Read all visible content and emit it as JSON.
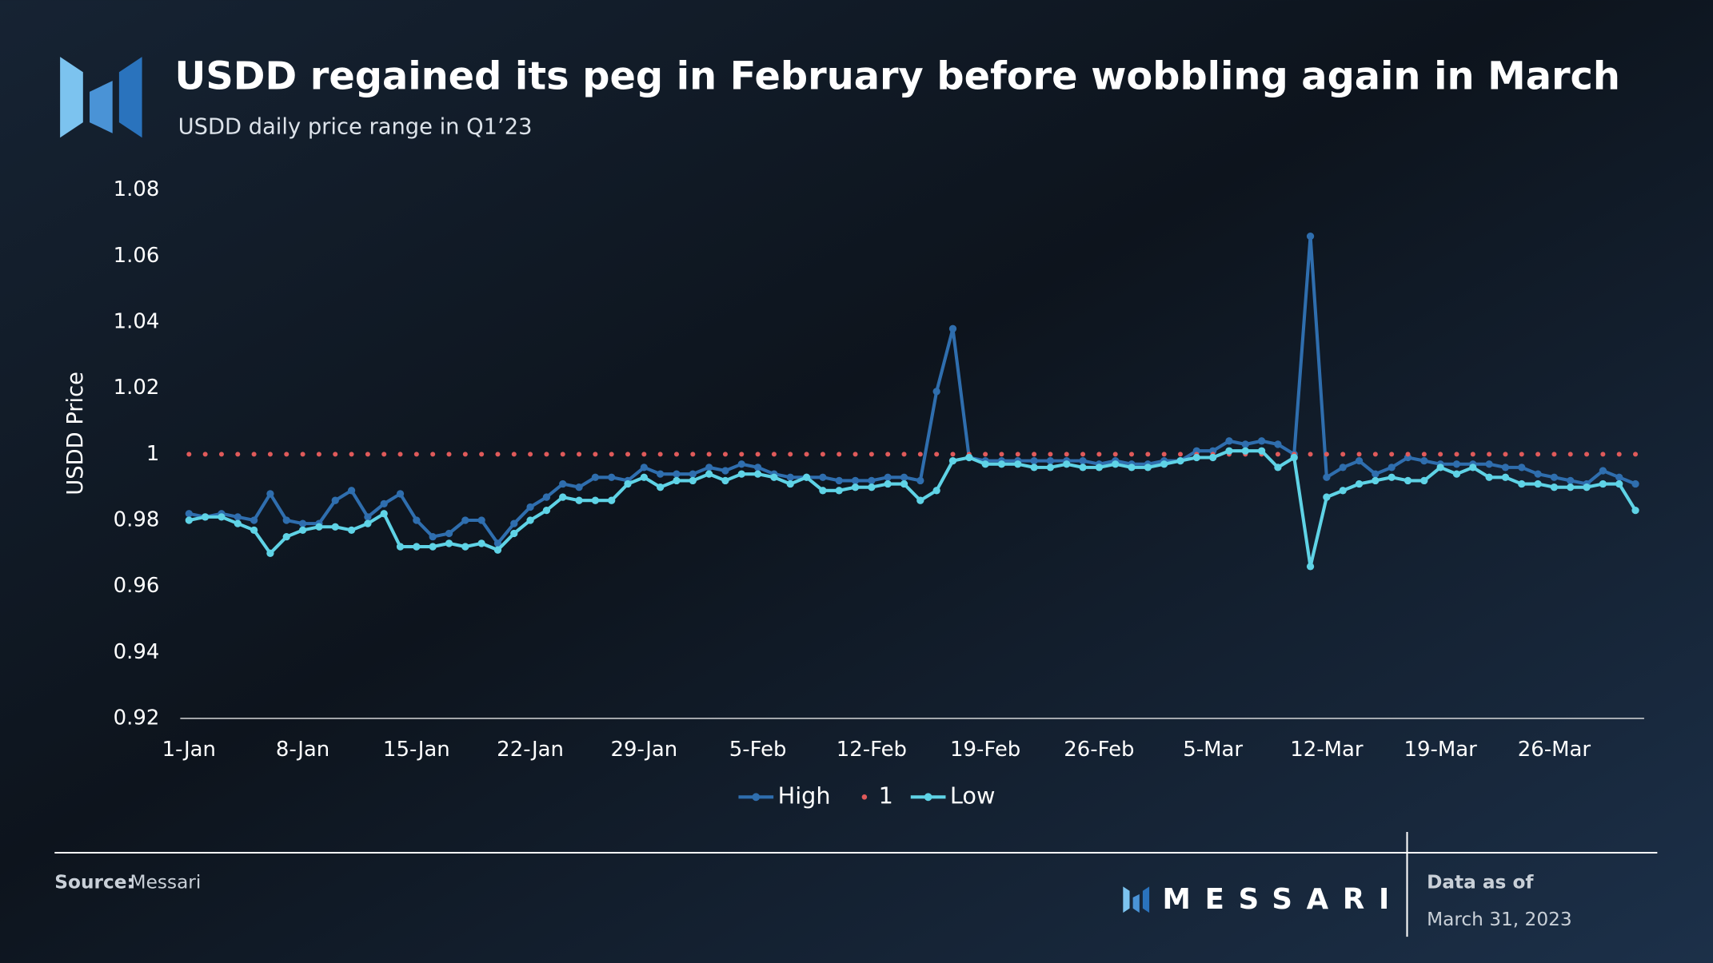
{
  "chart_data": {
    "type": "line",
    "title": "USDD regained its peg in February before wobbling again in March",
    "subtitle": "USDD daily price range in Q1’23",
    "y_label": "USDD Price",
    "categories": [
      "1-Jan",
      null,
      null,
      null,
      null,
      null,
      null,
      "8-Jan",
      null,
      null,
      null,
      null,
      null,
      null,
      "15-Jan",
      null,
      null,
      null,
      null,
      null,
      null,
      "22-Jan",
      null,
      null,
      null,
      null,
      null,
      null,
      "29-Jan",
      null,
      null,
      null,
      null,
      null,
      null,
      "5-Feb",
      null,
      null,
      null,
      null,
      null,
      null,
      "12-Feb",
      null,
      null,
      null,
      null,
      null,
      null,
      "19-Feb",
      null,
      null,
      null,
      null,
      null,
      null,
      "26-Feb",
      null,
      null,
      null,
      null,
      null,
      null,
      "5-Mar",
      null,
      null,
      null,
      null,
      null,
      null,
      "12-Mar",
      null,
      null,
      null,
      null,
      null,
      null,
      "19-Mar",
      null,
      null,
      null,
      null,
      null,
      null,
      "26-Mar",
      null,
      null,
      null,
      null,
      null
    ],
    "series": [
      {
        "name": "High",
        "color": "#2f6eae",
        "line_style": "solid",
        "values": [
          0.982,
          0.981,
          0.982,
          0.981,
          0.98,
          0.988,
          0.98,
          0.979,
          0.979,
          0.986,
          0.989,
          0.981,
          0.985,
          0.988,
          0.98,
          0.975,
          0.976,
          0.98,
          0.98,
          0.973,
          0.979,
          0.984,
          0.987,
          0.991,
          0.99,
          0.993,
          0.993,
          0.992,
          0.996,
          0.994,
          0.994,
          0.994,
          0.996,
          0.995,
          0.997,
          0.996,
          0.994,
          0.993,
          0.993,
          0.993,
          0.992,
          0.992,
          0.992,
          0.993,
          0.993,
          0.992,
          1.019,
          1.038,
          0.999,
          0.998,
          0.998,
          0.998,
          0.998,
          0.998,
          0.998,
          0.998,
          0.997,
          0.998,
          0.997,
          0.997,
          0.998,
          0.998,
          1.001,
          1.001,
          1.004,
          1.003,
          1.004,
          1.003,
          1.0,
          1.066,
          0.993,
          0.996,
          0.998,
          0.994,
          0.996,
          0.999,
          0.998,
          0.997,
          0.997,
          0.997,
          0.997,
          0.996,
          0.996,
          0.994,
          0.993,
          0.992,
          0.991,
          0.995,
          0.993,
          0.991
        ]
      },
      {
        "name": "1",
        "color": "#e05a5a",
        "line_style": "dotted",
        "values": [
          1,
          1,
          1,
          1,
          1,
          1,
          1,
          1,
          1,
          1,
          1,
          1,
          1,
          1,
          1,
          1,
          1,
          1,
          1,
          1,
          1,
          1,
          1,
          1,
          1,
          1,
          1,
          1,
          1,
          1,
          1,
          1,
          1,
          1,
          1,
          1,
          1,
          1,
          1,
          1,
          1,
          1,
          1,
          1,
          1,
          1,
          1,
          1,
          1,
          1,
          1,
          1,
          1,
          1,
          1,
          1,
          1,
          1,
          1,
          1,
          1,
          1,
          1,
          1,
          1,
          1,
          1,
          1,
          1,
          1,
          1,
          1,
          1,
          1,
          1,
          1,
          1,
          1,
          1,
          1,
          1,
          1,
          1,
          1,
          1,
          1,
          1,
          1,
          1,
          1
        ]
      },
      {
        "name": "Low",
        "color": "#5fd3e6",
        "line_style": "solid",
        "values": [
          0.98,
          0.981,
          0.981,
          0.979,
          0.977,
          0.97,
          0.975,
          0.977,
          0.978,
          0.978,
          0.977,
          0.979,
          0.982,
          0.972,
          0.972,
          0.972,
          0.973,
          0.972,
          0.973,
          0.971,
          0.976,
          0.98,
          0.983,
          0.987,
          0.986,
          0.986,
          0.986,
          0.991,
          0.993,
          0.99,
          0.992,
          0.992,
          0.994,
          0.992,
          0.994,
          0.994,
          0.993,
          0.991,
          0.993,
          0.989,
          0.989,
          0.99,
          0.99,
          0.991,
          0.991,
          0.986,
          0.989,
          0.998,
          0.999,
          0.997,
          0.997,
          0.997,
          0.996,
          0.996,
          0.997,
          0.996,
          0.996,
          0.997,
          0.996,
          0.996,
          0.997,
          0.998,
          0.999,
          0.999,
          1.001,
          1.001,
          1.001,
          0.996,
          0.999,
          0.966,
          0.987,
          0.989,
          0.991,
          0.992,
          0.993,
          0.992,
          0.992,
          0.996,
          0.994,
          0.996,
          0.993,
          0.993,
          0.991,
          0.991,
          0.99,
          0.99,
          0.99,
          0.991,
          0.991,
          0.983
        ]
      }
    ],
    "ylim": [
      0.92,
      1.08
    ],
    "yticks": [
      0.92,
      0.94,
      0.96,
      0.98,
      1,
      1.02,
      1.04,
      1.06,
      1.08
    ],
    "grid": false,
    "legend": "bottom"
  },
  "footer": {
    "source_label": "Source:",
    "source": "Messari",
    "brand": "MESSARI",
    "date_label": "Data as of",
    "date": "March 31, 2023"
  }
}
